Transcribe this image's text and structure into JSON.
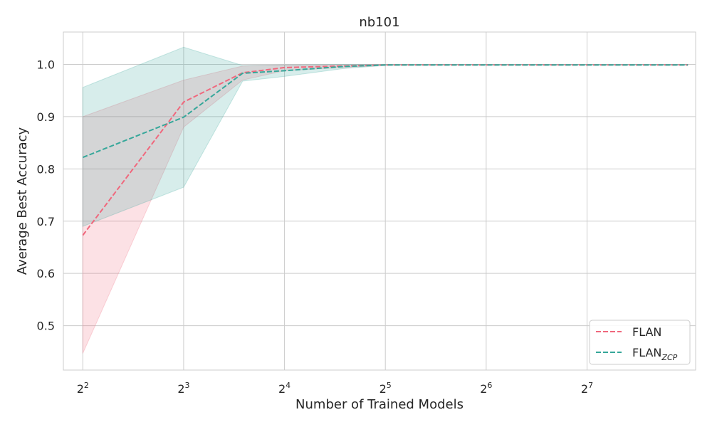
{
  "chart_data": {
    "type": "line",
    "title": "nb101",
    "xlabel": "Number of Trained Models",
    "ylabel": "Average Best Accuracy",
    "x_scale": "log2",
    "xlim": [
      3.5,
      270
    ],
    "ylim": [
      0.415,
      1.062
    ],
    "x_ticks": [
      {
        "value": 4,
        "base": "2",
        "exp": "2"
      },
      {
        "value": 8,
        "base": "2",
        "exp": "3"
      },
      {
        "value": 16,
        "base": "2",
        "exp": "4"
      },
      {
        "value": 32,
        "base": "2",
        "exp": "5"
      },
      {
        "value": 64,
        "base": "2",
        "exp": "6"
      },
      {
        "value": 128,
        "base": "2",
        "exp": "7"
      }
    ],
    "y_ticks": [
      {
        "value": 0.5,
        "label": "0.5"
      },
      {
        "value": 0.6,
        "label": "0.6"
      },
      {
        "value": 0.7,
        "label": "0.7"
      },
      {
        "value": 0.8,
        "label": "0.8"
      },
      {
        "value": 0.9,
        "label": "0.9"
      },
      {
        "value": 1.0,
        "label": "1.0"
      }
    ],
    "grid": true,
    "legend_position": "bottom-right",
    "series": [
      {
        "name": "FLAN",
        "name_sub": "",
        "color": "#f0687d",
        "style": "dashed",
        "x": [
          4,
          8,
          12,
          16,
          24,
          32,
          48,
          64,
          96,
          128,
          192,
          256
        ],
        "y": [
          0.673,
          0.928,
          0.984,
          0.994,
          0.997,
          0.999,
          0.999,
          0.999,
          0.999,
          0.999,
          0.999,
          0.999
        ],
        "lower": [
          0.447,
          0.88,
          0.97,
          0.988,
          0.994,
          0.998,
          0.999,
          0.999,
          0.999,
          0.999,
          0.999,
          0.999
        ],
        "upper": [
          0.9,
          0.97,
          0.997,
          0.999,
          0.999,
          1.0,
          1.0,
          1.0,
          1.0,
          1.0,
          1.0,
          1.0
        ]
      },
      {
        "name": "FLAN",
        "name_sub": "ZCP",
        "color": "#36a79a",
        "style": "dashed",
        "x": [
          4,
          8,
          12,
          16,
          24,
          32,
          48,
          64,
          96,
          128,
          192,
          256
        ],
        "y": [
          0.822,
          0.899,
          0.983,
          0.988,
          0.996,
          0.999,
          0.999,
          0.999,
          0.999,
          0.999,
          0.999,
          0.999
        ],
        "lower": [
          0.69,
          0.765,
          0.968,
          0.977,
          0.992,
          0.998,
          0.999,
          0.999,
          0.999,
          0.999,
          0.999,
          0.999
        ],
        "upper": [
          0.956,
          1.033,
          0.998,
          0.999,
          1.0,
          1.0,
          1.0,
          1.0,
          1.0,
          1.0,
          1.0,
          1.0
        ]
      }
    ]
  }
}
